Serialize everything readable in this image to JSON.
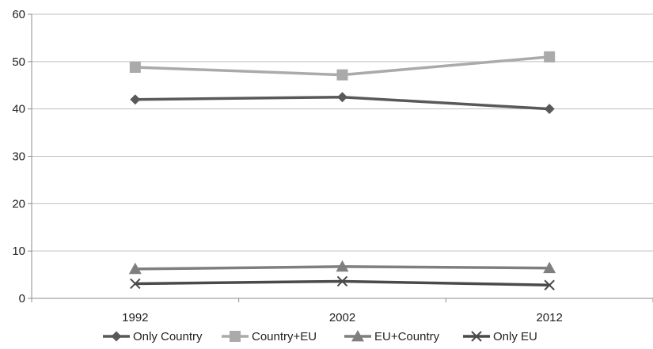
{
  "chart_data": {
    "type": "line",
    "title": "",
    "xlabel": "",
    "ylabel": "",
    "categories": [
      "1992",
      "2002",
      "2012"
    ],
    "ylim": [
      0,
      60
    ],
    "yticks": [
      0,
      10,
      20,
      30,
      40,
      50,
      60
    ],
    "grid": "horizontal",
    "legend": "bottom",
    "series": [
      {
        "name": "Only Country",
        "values": [
          42,
          42.5,
          40
        ],
        "color": "#595959",
        "marker": "diamond"
      },
      {
        "name": "Country+EU",
        "values": [
          48.8,
          47.2,
          51
        ],
        "color": "#aaaaaa",
        "marker": "square"
      },
      {
        "name": "EU+Country",
        "values": [
          6.2,
          6.7,
          6.4
        ],
        "color": "#7f7f7f",
        "marker": "triangle"
      },
      {
        "name": "Only EU",
        "values": [
          3.1,
          3.6,
          2.8
        ],
        "color": "#4a4a4a",
        "marker": "x"
      }
    ]
  }
}
